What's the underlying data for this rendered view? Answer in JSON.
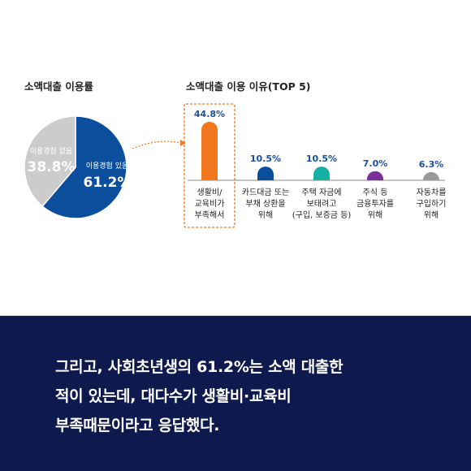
{
  "chart_data": [
    {
      "type": "pie",
      "title": "소액대출 이용률",
      "slices": [
        {
          "label": "이용경험 있음",
          "value": 61.2,
          "value_label": "61.2%",
          "color": "#0b4f9c"
        },
        {
          "label": "이용경험 없음",
          "value": 38.8,
          "value_label": "38.8%",
          "color": "#cccccc"
        }
      ]
    },
    {
      "type": "bar",
      "title": "소액대출 이용 이유(TOP 5)",
      "categories": [
        [
          "생활비/",
          "교육비가",
          "부족해서"
        ],
        [
          "카드대금 또는",
          "부채 상환을",
          "위해"
        ],
        [
          "주택 자금에",
          "보태려고",
          "(구입, 보증금 등)"
        ],
        [
          "주식 등",
          "금융투자를",
          "위해"
        ],
        [
          "자동차를",
          "구입하기",
          "위해"
        ]
      ],
      "values": [
        44.8,
        10.5,
        10.5,
        7.0,
        6.3
      ],
      "value_labels": [
        "44.8%",
        "10.5%",
        "10.5%",
        "7.0%",
        "6.3%"
      ],
      "colors": [
        "#f0771e",
        "#0b4f9c",
        "#16b0a4",
        "#7a2f9b",
        "#9a9a9a"
      ],
      "highlight_index": 0,
      "ylim": [
        0,
        50
      ]
    }
  ],
  "caption": {
    "lines": [
      "그리고, 사회초년생의 61.2%는 소액 대출한",
      "적이 있는데, 대다수가 생활비·교육비",
      "부족때문이라고 응답했다."
    ]
  }
}
